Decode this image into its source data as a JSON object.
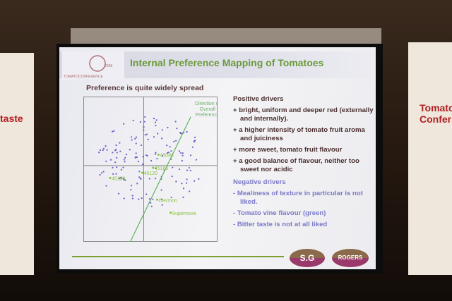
{
  "slide": {
    "title": "Internal Preference Mapping of Tomatoes",
    "logo_text": "TOMATOCONFERENCE",
    "logo_year": "2008",
    "subtitle": "Preference is quite widely spread",
    "positive_heading": "Positive drivers",
    "positive": [
      "+ bright, uniform and deeper red (externally and internally).",
      "+ a higher intensity of tomato fruit aroma and juiciness",
      "+ more sweet, tomato fruit flavour",
      "+ a good balance of flavour, neither too sweet nor acidic"
    ],
    "negative_heading": "Negative drivers",
    "negative": [
      "- Mealiness of texture in particular is not liked.",
      "- Tomato vine flavour (green)",
      "- Bitter taste is not at all liked"
    ],
    "sponsors": [
      "S.G",
      "ROGERS"
    ]
  },
  "banners": {
    "left": "taste",
    "right": "Tomato Confer"
  },
  "chart_data": {
    "type": "scatter",
    "xlim": [
      -1,
      1
    ],
    "ylim": [
      -1,
      1
    ],
    "arrow_label": "Direction of Overall Preference",
    "labeled_points": [
      {
        "label": "45086",
        "x": 0.12,
        "y": 0.2
      },
      {
        "label": "45165",
        "x": 0.04,
        "y": 0.02
      },
      {
        "label": "45120",
        "x": -0.12,
        "y": -0.05
      },
      {
        "label": "45133",
        "x": -0.6,
        "y": -0.12
      },
      {
        "label": "Clermon",
        "x": 0.1,
        "y": -0.42
      },
      {
        "label": "Supernova",
        "x": 0.3,
        "y": -0.6
      }
    ],
    "colors": {
      "points": "#6a60c8",
      "labels": "#8ac040",
      "axes": "#888888"
    }
  }
}
